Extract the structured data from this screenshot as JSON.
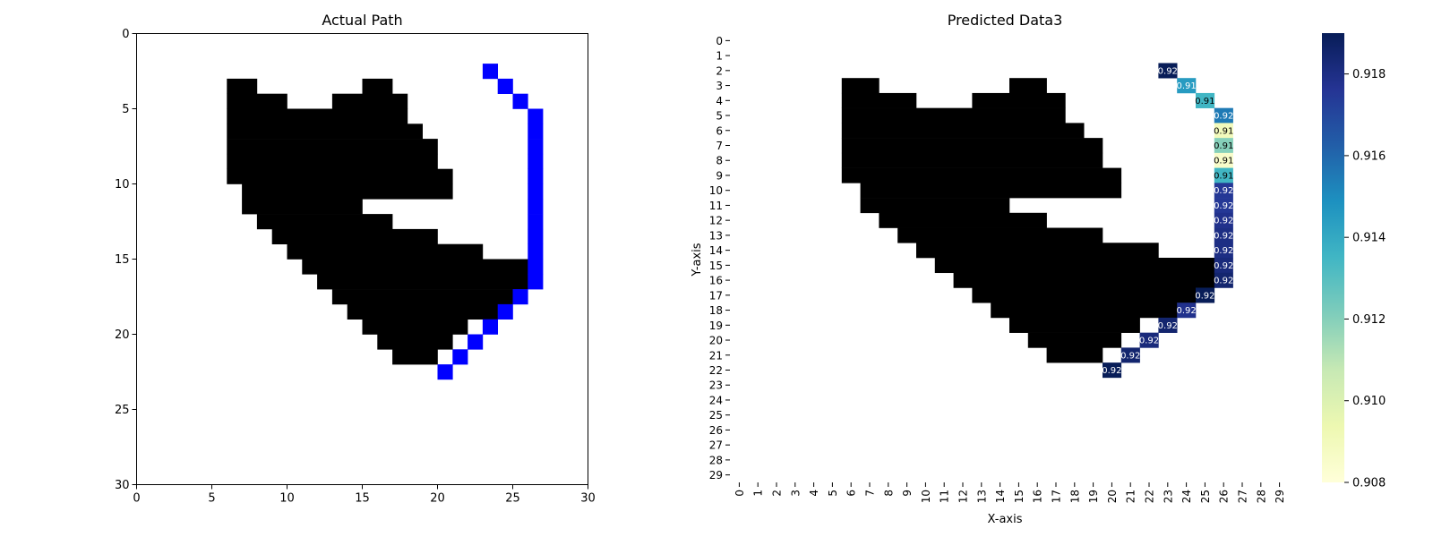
{
  "chart_data": [
    {
      "type": "heatmap",
      "title": "Actual Path",
      "xlim": [
        0,
        30
      ],
      "ylim": [
        30,
        0
      ],
      "xticks": [
        0,
        5,
        10,
        15,
        20,
        25,
        30
      ],
      "yticks": [
        0,
        5,
        10,
        15,
        20,
        25,
        30
      ],
      "obstacle_color": "#000000",
      "path_color": "#0000ff",
      "obstacles": [
        [
          3,
          6,
          8
        ],
        [
          3,
          15,
          17
        ],
        [
          4,
          6,
          10
        ],
        [
          4,
          13,
          18
        ],
        [
          5,
          6,
          18
        ],
        [
          6,
          6,
          19
        ],
        [
          7,
          6,
          20
        ],
        [
          8,
          6,
          20
        ],
        [
          9,
          6,
          21
        ],
        [
          10,
          7,
          21
        ],
        [
          11,
          7,
          15
        ],
        [
          12,
          8,
          17
        ],
        [
          13,
          9,
          20
        ],
        [
          14,
          10,
          23
        ],
        [
          15,
          11,
          26
        ],
        [
          16,
          12,
          26
        ],
        [
          17,
          13,
          25
        ],
        [
          18,
          14,
          24
        ],
        [
          19,
          15,
          22
        ],
        [
          20,
          16,
          21
        ],
        [
          21,
          17,
          20
        ]
      ],
      "path": [
        [
          23,
          2
        ],
        [
          24,
          3
        ],
        [
          25,
          4
        ],
        [
          26,
          5
        ],
        [
          26,
          6
        ],
        [
          26,
          7
        ],
        [
          26,
          8
        ],
        [
          26,
          9
        ],
        [
          26,
          10
        ],
        [
          26,
          11
        ],
        [
          26,
          12
        ],
        [
          26,
          13
        ],
        [
          26,
          14
        ],
        [
          26,
          15
        ],
        [
          26,
          16
        ],
        [
          25,
          17
        ],
        [
          24,
          18
        ],
        [
          23,
          19
        ],
        [
          22,
          20
        ],
        [
          21,
          21
        ],
        [
          20,
          22
        ]
      ]
    },
    {
      "type": "heatmap",
      "title": "Predicted Data3",
      "xlabel": "X-axis",
      "ylabel": "Y-axis",
      "xticks": [
        0,
        1,
        2,
        3,
        4,
        5,
        6,
        7,
        8,
        9,
        10,
        11,
        12,
        13,
        14,
        15,
        16,
        17,
        18,
        19,
        20,
        21,
        22,
        23,
        24,
        25,
        26,
        27,
        28,
        29
      ],
      "yticks": [
        0,
        1,
        2,
        3,
        4,
        5,
        6,
        7,
        8,
        9,
        10,
        11,
        12,
        13,
        14,
        15,
        16,
        17,
        18,
        19,
        20,
        21,
        22,
        23,
        24,
        25,
        26,
        27,
        28,
        29
      ],
      "colorscale": "YlGnBu",
      "vmin": 0.908,
      "vmax": 0.919,
      "colorbar_ticks": [
        "0.908",
        "0.910",
        "0.912",
        "0.914",
        "0.916",
        "0.918"
      ],
      "obstacle_color": "#000000",
      "cells": [
        {
          "x": 23,
          "y": 2,
          "value": 0.919,
          "label": "0.92"
        },
        {
          "x": 24,
          "y": 3,
          "value": 0.9145,
          "label": "0.91"
        },
        {
          "x": 25,
          "y": 4,
          "value": 0.9135,
          "label": "0.91"
        },
        {
          "x": 26,
          "y": 5,
          "value": 0.9155,
          "label": "0.92"
        },
        {
          "x": 26,
          "y": 6,
          "value": 0.909,
          "label": "0.91"
        },
        {
          "x": 26,
          "y": 7,
          "value": 0.912,
          "label": "0.91"
        },
        {
          "x": 26,
          "y": 8,
          "value": 0.9085,
          "label": "0.91"
        },
        {
          "x": 26,
          "y": 9,
          "value": 0.9135,
          "label": "0.91"
        },
        {
          "x": 26,
          "y": 10,
          "value": 0.9175,
          "label": "0.92"
        },
        {
          "x": 26,
          "y": 11,
          "value": 0.9175,
          "label": "0.92"
        },
        {
          "x": 26,
          "y": 12,
          "value": 0.9178,
          "label": "0.92"
        },
        {
          "x": 26,
          "y": 13,
          "value": 0.918,
          "label": "0.92"
        },
        {
          "x": 26,
          "y": 14,
          "value": 0.918,
          "label": "0.92"
        },
        {
          "x": 26,
          "y": 15,
          "value": 0.9182,
          "label": "0.92"
        },
        {
          "x": 26,
          "y": 16,
          "value": 0.9185,
          "label": "0.92"
        },
        {
          "x": 25,
          "y": 17,
          "value": 0.919,
          "label": "0.92"
        },
        {
          "x": 24,
          "y": 18,
          "value": 0.9178,
          "label": "0.92"
        },
        {
          "x": 23,
          "y": 19,
          "value": 0.9185,
          "label": "0.92"
        },
        {
          "x": 22,
          "y": 20,
          "value": 0.9182,
          "label": "0.92"
        },
        {
          "x": 21,
          "y": 21,
          "value": 0.9185,
          "label": "0.92"
        },
        {
          "x": 20,
          "y": 22,
          "value": 0.919,
          "label": "0.92"
        }
      ]
    }
  ]
}
